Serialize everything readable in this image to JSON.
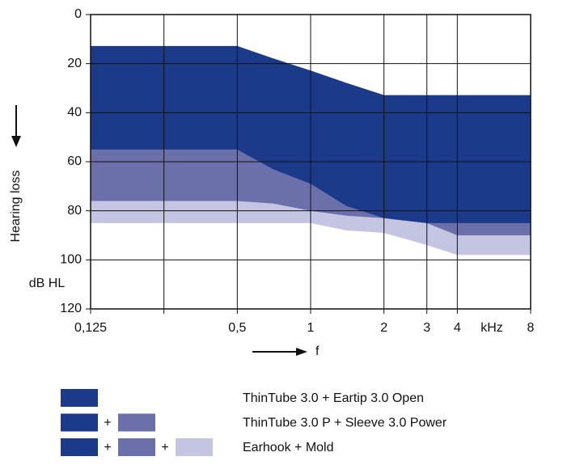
{
  "chart_data": {
    "type": "area",
    "y_label": "Hearing loss",
    "y_unit": "dB HL",
    "x_label": "f",
    "x_unit": "kHz",
    "xscale": "log",
    "xlim": [
      0.125,
      8
    ],
    "xticks": [
      {
        "value": 0.125,
        "label": "0,125"
      },
      {
        "value": 0.25,
        "label": null
      },
      {
        "value": 0.5,
        "label": "0,5"
      },
      1,
      2,
      3,
      4,
      8
    ],
    "ylim": [
      0,
      120
    ],
    "yticks": [
      0,
      20,
      40,
      60,
      80,
      100,
      120
    ],
    "y_inverted": true,
    "grid": true,
    "x": [
      0.125,
      0.5,
      0.7,
      1,
      1.4,
      2,
      3,
      4,
      8
    ],
    "upper_values": [
      13,
      13,
      18,
      23,
      28,
      33,
      33,
      33,
      33
    ],
    "series": [
      {
        "name": "ThinTube 3.0 + Eartip 3.0 Open",
        "color": "#1c3a8a",
        "values": [
          55,
          55,
          63,
          69,
          78,
          83,
          85,
          85,
          85
        ]
      },
      {
        "name": "ThinTube 3.0 P + Sleeve 3.0 Power",
        "color": "#6b70ab",
        "values": [
          76,
          76,
          77,
          80,
          82,
          83,
          85,
          90,
          90
        ]
      },
      {
        "name": "Earhook + Mold",
        "color": "#c3c5e2",
        "values": [
          85,
          85,
          85,
          85,
          88,
          89,
          94,
          98,
          98
        ]
      }
    ],
    "legend_joiner": "+"
  }
}
